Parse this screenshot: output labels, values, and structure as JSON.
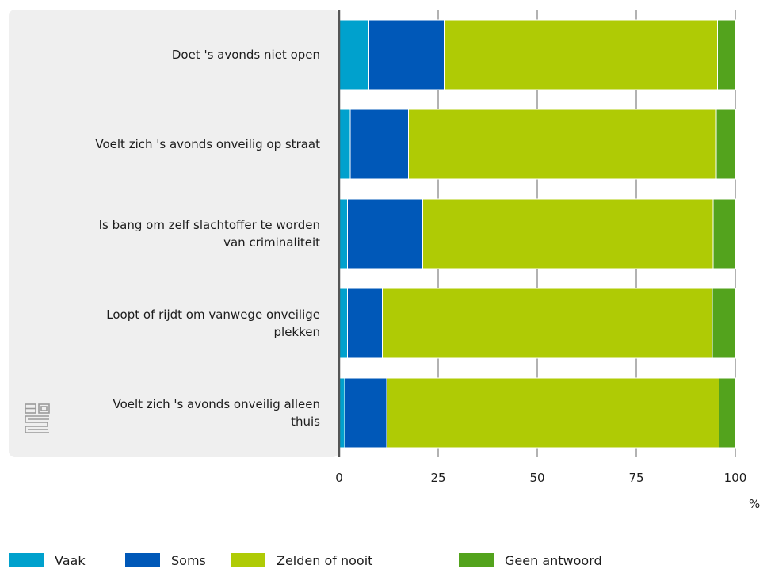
{
  "chart_data": {
    "type": "bar",
    "orientation": "horizontal",
    "stacked": true,
    "categories": [
      "Doet 's avonds niet open",
      "Voelt zich 's avonds onveilig op straat",
      "Is bang om zelf slachtoffer te worden van criminaliteit",
      "Loopt of rijdt om vanwege onveilige plekken",
      "Voelt zich 's avonds onveilig alleen thuis"
    ],
    "category_lines": [
      [
        "Doet 's avonds niet open"
      ],
      [
        "Voelt zich 's avonds onveilig op straat"
      ],
      [
        "Is bang om zelf slachtoffer te worden",
        "van criminaliteit"
      ],
      [
        "Loopt of rijdt om vanwege onveilige",
        "plekken"
      ],
      [
        "Voelt zich 's avonds onveilig alleen",
        "thuis"
      ]
    ],
    "series": [
      {
        "name": "Vaak",
        "color": "#00a1cd",
        "values": [
          7.5,
          2.8,
          2.1,
          2.1,
          1.4
        ]
      },
      {
        "name": "Soms",
        "color": "#0058b8",
        "values": [
          19.0,
          14.7,
          19.0,
          8.8,
          10.6
        ]
      },
      {
        "name": "Zelden of nooit",
        "color": "#afcb05",
        "values": [
          69.0,
          77.7,
          73.3,
          83.3,
          83.9
        ]
      },
      {
        "name": "Geen antwoord",
        "color": "#53a31d",
        "values": [
          4.5,
          4.8,
          5.6,
          5.8,
          4.1
        ]
      }
    ],
    "xlim": [
      0,
      100
    ],
    "xticks": [
      "0",
      "25",
      "50",
      "75",
      "100"
    ],
    "xunit": "%",
    "grid": true,
    "legend_position": "bottom"
  },
  "logo": {
    "name": "cbs-logo"
  }
}
